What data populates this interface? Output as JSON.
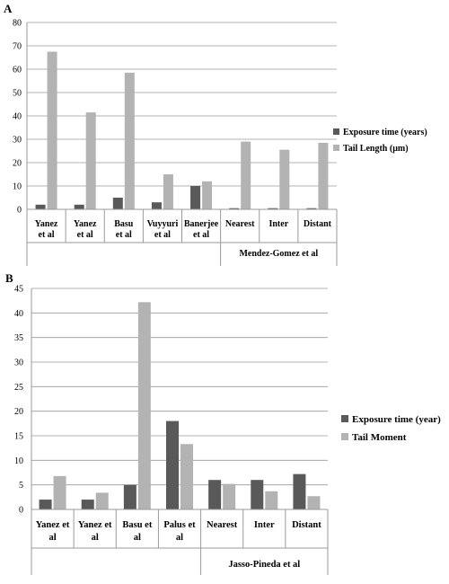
{
  "chart_data": [
    {
      "panel": "A",
      "type": "bar",
      "categories": [
        "Yanez et al",
        "Yanez et al",
        "Basu et al",
        "Vuyyuri et al",
        "Banerjee et al",
        "Nearest",
        "Inter",
        "Distant"
      ],
      "group_label": "Mendez-Gomez et al",
      "group_span": [
        "Nearest",
        "Distant"
      ],
      "series": [
        {
          "name": "Exposure time (years)",
          "color": "#595959",
          "values": [
            2,
            2,
            5,
            3,
            10,
            0.5,
            0.5,
            0.5
          ]
        },
        {
          "name": "Tail Length (μm)",
          "color": "#b3b3b3",
          "values": [
            67.5,
            41.5,
            58.5,
            15,
            12,
            29,
            25.5,
            28.5
          ]
        }
      ],
      "ylim": [
        0,
        80
      ],
      "yticks": [
        0,
        10,
        20,
        30,
        40,
        50,
        60,
        70,
        80
      ],
      "grid": true,
      "legend": "right"
    },
    {
      "panel": "B",
      "type": "bar",
      "categories": [
        "Yanez et al",
        "Yanez et al",
        "Basu et al",
        "Palus et al",
        "Nearest",
        "Inter",
        "Distant"
      ],
      "group_label": "Jasso-Pineda et al",
      "group_span": [
        "Nearest",
        "Distant"
      ],
      "series": [
        {
          "name": "Exposure time (year)",
          "color": "#595959",
          "values": [
            2,
            2,
            5,
            18,
            6,
            6,
            7.2
          ]
        },
        {
          "name": "Tail Moment",
          "color": "#b3b3b3",
          "values": [
            6.8,
            3.4,
            42.2,
            13.3,
            5.2,
            3.7,
            2.7
          ]
        }
      ],
      "ylim": [
        0,
        45
      ],
      "yticks": [
        0,
        5,
        10,
        15,
        20,
        25,
        30,
        35,
        40,
        45
      ],
      "grid": true,
      "legend": "right"
    }
  ]
}
